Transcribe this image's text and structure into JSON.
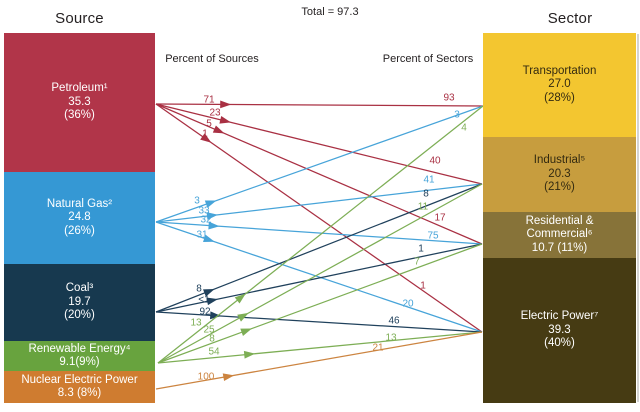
{
  "figure": {
    "total_label": "Total = 97.3",
    "source_header": "Source",
    "sector_header": "Sector",
    "percent_of_sources_label": "Percent of Sources",
    "percent_of_sectors_label": "Percent of Sectors"
  },
  "sources": [
    {
      "id": "petroleum",
      "lines": [
        "Petroleum¹",
        "35.3",
        "(36%)"
      ],
      "color": "#b13549",
      "arrow_color": "#a93043",
      "text_color": "#ffffff"
    },
    {
      "id": "natural_gas",
      "lines": [
        "Natural Gas²",
        "24.8",
        "(26%)"
      ],
      "color": "#3598d4",
      "arrow_color": "#47a4d9",
      "text_color": "#ffffff"
    },
    {
      "id": "coal",
      "lines": [
        "Coal³",
        "19.7",
        "(20%)"
      ],
      "color": "#17394f",
      "arrow_color": "#20415c",
      "text_color": "#ffffff"
    },
    {
      "id": "renewable",
      "lines": [
        "Renewable Energy⁴",
        "9.1(9%)"
      ],
      "color": "#68a33e",
      "arrow_color": "#7dae55",
      "text_color": "#ffffff"
    },
    {
      "id": "nuclear",
      "lines": [
        "Nuclear Electric Power",
        "8.3 (8%)"
      ],
      "color": "#cf7c30",
      "arrow_color": "#cc8440",
      "text_color": "#ffffff"
    }
  ],
  "sectors": [
    {
      "id": "transportation",
      "lines": [
        "Transportation",
        "27.0",
        "(28%)"
      ],
      "color": "#f3c630",
      "text_color": "#332a10"
    },
    {
      "id": "industrial",
      "lines": [
        "Industrial⁵",
        "20.3",
        "(21%)"
      ],
      "color": "#c79d3e",
      "text_color": "#332a10"
    },
    {
      "id": "res_comm",
      "lines": [
        "Residential &",
        "Commercial⁶",
        "10.7 (11%)"
      ],
      "color": "#877339",
      "text_color": "#ffffff"
    },
    {
      "id": "electric",
      "lines": [
        "Electric Power⁷",
        "39.3",
        "(40%)"
      ],
      "color": "#463b13",
      "text_color": "#ffffff"
    }
  ],
  "flows": [
    {
      "source": "petroleum",
      "target": "transportation",
      "percent_of_source": "71",
      "percent_of_sector": "93"
    },
    {
      "source": "petroleum",
      "target": "industrial",
      "percent_of_source": "23",
      "percent_of_sector": "40"
    },
    {
      "source": "petroleum",
      "target": "res_comm",
      "percent_of_source": "5",
      "percent_of_sector": "17"
    },
    {
      "source": "petroleum",
      "target": "electric",
      "percent_of_source": "1",
      "percent_of_sector": "1"
    },
    {
      "source": "natural_gas",
      "target": "transportation",
      "percent_of_source": "3",
      "percent_of_sector": "3"
    },
    {
      "source": "natural_gas",
      "target": "industrial",
      "percent_of_source": "33",
      "percent_of_sector": "41"
    },
    {
      "source": "natural_gas",
      "target": "res_comm",
      "percent_of_source": "32",
      "percent_of_sector": "75"
    },
    {
      "source": "natural_gas",
      "target": "electric",
      "percent_of_source": "31",
      "percent_of_sector": "20"
    },
    {
      "source": "coal",
      "target": "industrial",
      "percent_of_source": "8",
      "percent_of_sector": "8"
    },
    {
      "source": "coal",
      "target": "res_comm",
      "percent_of_source": "<1",
      "percent_of_sector": "1"
    },
    {
      "source": "coal",
      "target": "electric",
      "percent_of_source": "92",
      "percent_of_sector": "46"
    },
    {
      "source": "renewable",
      "target": "transportation",
      "percent_of_source": "13",
      "percent_of_sector": "4"
    },
    {
      "source": "renewable",
      "target": "industrial",
      "percent_of_source": "25",
      "percent_of_sector": "11"
    },
    {
      "source": "renewable",
      "target": "res_comm",
      "percent_of_source": "8",
      "percent_of_sector": "7"
    },
    {
      "source": "renewable",
      "target": "electric",
      "percent_of_source": "54",
      "percent_of_sector": "13"
    },
    {
      "source": "nuclear",
      "target": "electric",
      "percent_of_source": "100",
      "percent_of_sector": "21"
    }
  ],
  "chart_data": {
    "type": "sankey",
    "title": "Total = 97.3",
    "total": 97.3,
    "left_column_title": "Source",
    "right_column_title": "Sector",
    "middle_labels": [
      "Percent of Sources",
      "Percent of Sectors"
    ],
    "sources": [
      {
        "name": "Petroleum",
        "value": 35.3,
        "percent": 36
      },
      {
        "name": "Natural Gas",
        "value": 24.8,
        "percent": 26
      },
      {
        "name": "Coal",
        "value": 19.7,
        "percent": 20
      },
      {
        "name": "Renewable Energy",
        "value": 9.1,
        "percent": 9
      },
      {
        "name": "Nuclear Electric Power",
        "value": 8.3,
        "percent": 8
      }
    ],
    "sectors": [
      {
        "name": "Transportation",
        "value": 27.0,
        "percent": 28
      },
      {
        "name": "Industrial",
        "value": 20.3,
        "percent": 21
      },
      {
        "name": "Residential & Commercial",
        "value": 10.7,
        "percent": 11
      },
      {
        "name": "Electric Power",
        "value": 39.3,
        "percent": 40
      }
    ],
    "links": [
      {
        "source": "Petroleum",
        "target": "Transportation",
        "percent_of_source": 71,
        "percent_of_sector": 93
      },
      {
        "source": "Petroleum",
        "target": "Industrial",
        "percent_of_source": 23,
        "percent_of_sector": 40
      },
      {
        "source": "Petroleum",
        "target": "Residential & Commercial",
        "percent_of_source": 5,
        "percent_of_sector": 17
      },
      {
        "source": "Petroleum",
        "target": "Electric Power",
        "percent_of_source": 1,
        "percent_of_sector": 1
      },
      {
        "source": "Natural Gas",
        "target": "Transportation",
        "percent_of_source": 3,
        "percent_of_sector": 3
      },
      {
        "source": "Natural Gas",
        "target": "Industrial",
        "percent_of_source": 33,
        "percent_of_sector": 41
      },
      {
        "source": "Natural Gas",
        "target": "Residential & Commercial",
        "percent_of_source": 32,
        "percent_of_sector": 75
      },
      {
        "source": "Natural Gas",
        "target": "Electric Power",
        "percent_of_source": 31,
        "percent_of_sector": 20
      },
      {
        "source": "Coal",
        "target": "Industrial",
        "percent_of_source": 8,
        "percent_of_sector": 8
      },
      {
        "source": "Coal",
        "target": "Residential & Commercial",
        "percent_of_source": "<1",
        "percent_of_sector": 1
      },
      {
        "source": "Coal",
        "target": "Electric Power",
        "percent_of_source": 92,
        "percent_of_sector": 46
      },
      {
        "source": "Renewable Energy",
        "target": "Transportation",
        "percent_of_source": 13,
        "percent_of_sector": 4
      },
      {
        "source": "Renewable Energy",
        "target": "Industrial",
        "percent_of_source": 25,
        "percent_of_sector": 11
      },
      {
        "source": "Renewable Energy",
        "target": "Residential & Commercial",
        "percent_of_source": 8,
        "percent_of_sector": 7
      },
      {
        "source": "Renewable Energy",
        "target": "Electric Power",
        "percent_of_source": 54,
        "percent_of_sector": 13
      },
      {
        "source": "Nuclear Electric Power",
        "target": "Electric Power",
        "percent_of_source": 100,
        "percent_of_sector": 21
      }
    ]
  }
}
